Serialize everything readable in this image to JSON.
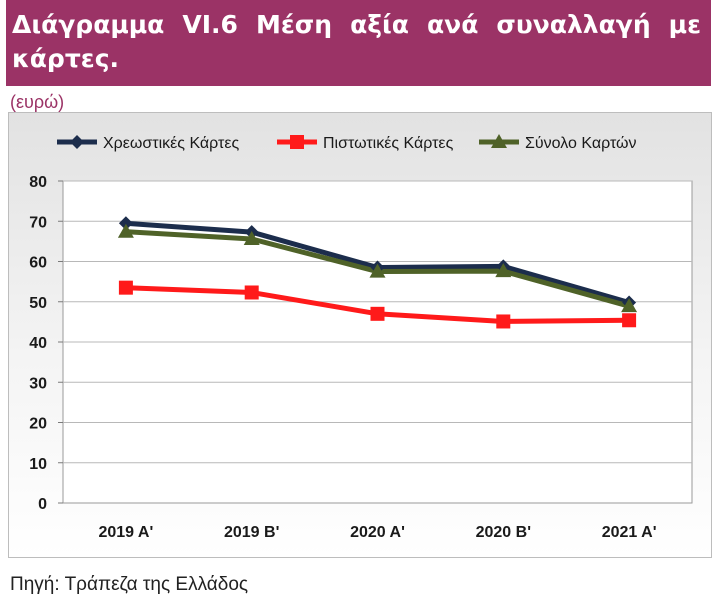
{
  "header": {
    "title": "Διάγραμμα VI.6 Μέση αξία ανά συναλλαγή με κάρτες.",
    "unit": "(ευρώ)"
  },
  "footer": {
    "source": "Πηγή: Τράπεζα της Ελλάδος"
  },
  "chart_data": {
    "type": "line",
    "categories": [
      "2019 Α'",
      "2019 Β'",
      "2020 Α'",
      "2020 Β'",
      "2021 Α'"
    ],
    "series": [
      {
        "name": "Χρεωστικές Κάρτες",
        "values": [
          69.5,
          67.3,
          58.5,
          58.8,
          49.8
        ],
        "color": "#1c2d4c",
        "marker": "diamond"
      },
      {
        "name": "Πιστωτικές Κάρτες",
        "values": [
          53.5,
          52.3,
          47.0,
          45.1,
          45.4
        ],
        "color": "#ff1a1a",
        "marker": "square"
      },
      {
        "name": "Σύνολο Καρτών",
        "values": [
          67.4,
          65.6,
          57.5,
          57.6,
          48.9
        ],
        "color": "#4f6228",
        "marker": "triangle"
      }
    ],
    "title": "",
    "xlabel": "",
    "ylabel": "",
    "ylim": [
      0,
      80
    ],
    "yticks": [
      0,
      10,
      20,
      30,
      40,
      50,
      60,
      70,
      80
    ],
    "grid": true,
    "legend_position": "top"
  }
}
